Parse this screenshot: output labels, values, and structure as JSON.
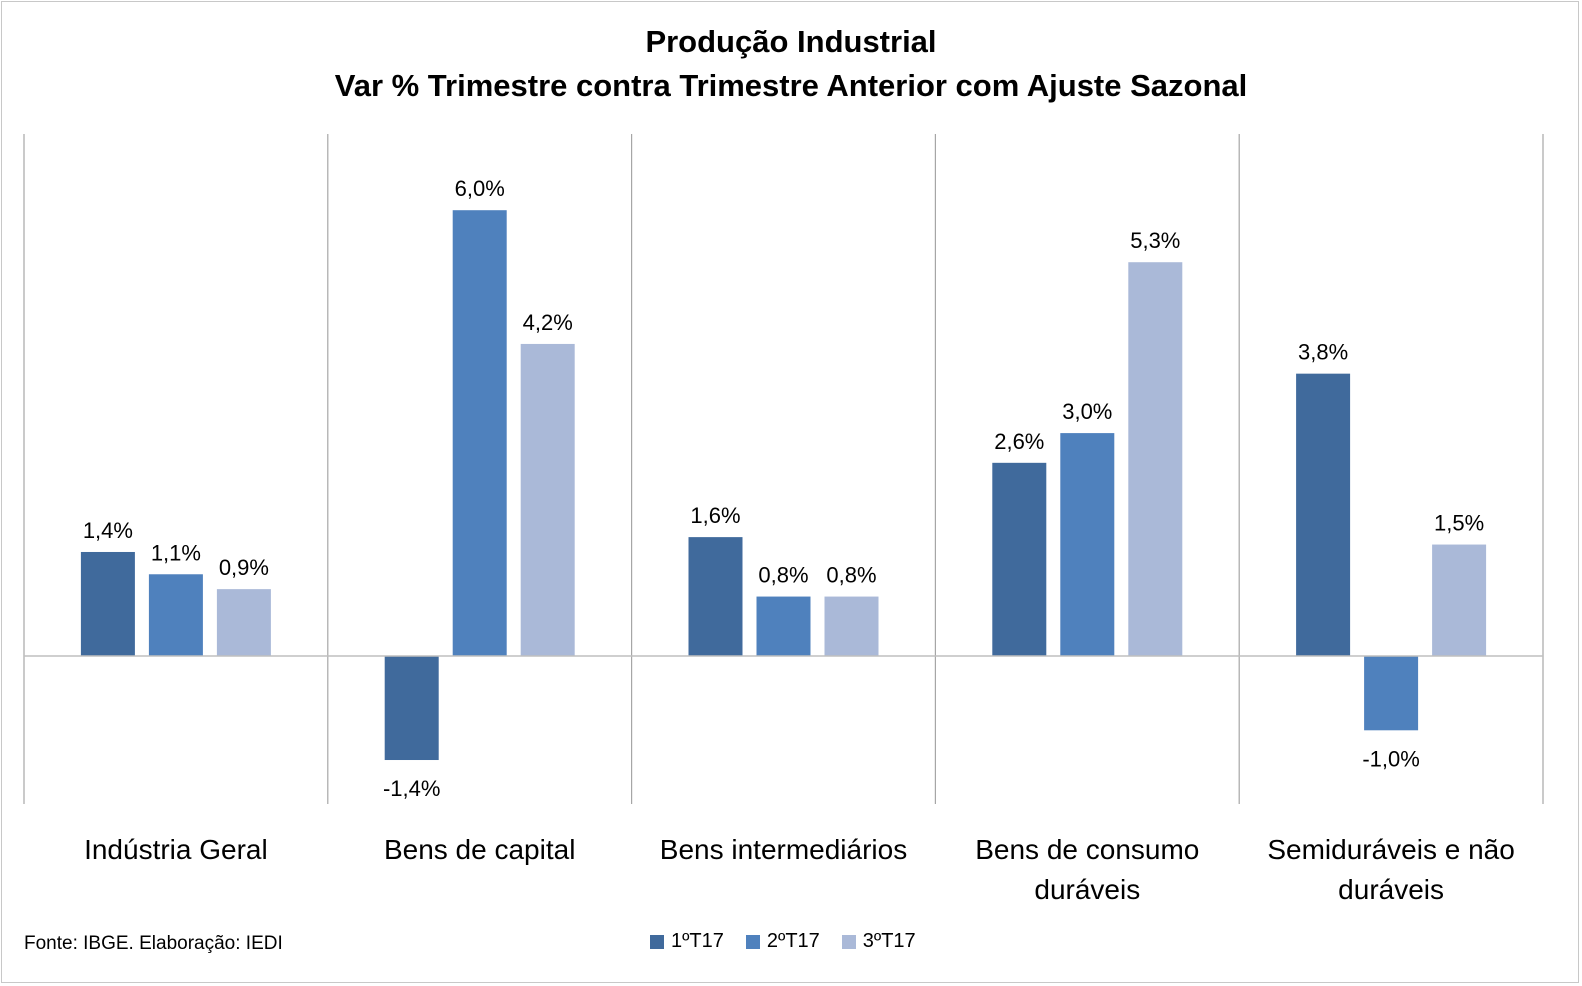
{
  "chart_data": {
    "type": "bar",
    "title": "Produção Industrial",
    "subtitle": "Var % Trimestre contra Trimestre Anterior com Ajuste Sazonal",
    "categories": [
      "Indústria Geral",
      "Bens de capital",
      "Bens intermediários",
      "Bens de consumo duráveis",
      "Semiduráveis e não duráveis"
    ],
    "category_lines": [
      [
        "Indústria Geral"
      ],
      [
        "Bens de capital"
      ],
      [
        "Bens intermediários"
      ],
      [
        "Bens de consumo",
        "duráveis"
      ],
      [
        "Semiduráveis e não",
        "duráveis"
      ]
    ],
    "series": [
      {
        "name": "1ºT17",
        "color": "#406A9C",
        "values": [
          1.4,
          -1.4,
          1.6,
          2.6,
          3.8
        ],
        "labels": [
          "1,4%",
          "-1,4%",
          "1,6%",
          "2,6%",
          "3,8%"
        ]
      },
      {
        "name": "2ºT17",
        "color": "#4F81BD",
        "values": [
          1.1,
          6.0,
          0.8,
          3.0,
          -1.0
        ],
        "labels": [
          "1,1%",
          "6,0%",
          "0,8%",
          "3,0%",
          "-1,0%"
        ]
      },
      {
        "name": "3ºT17",
        "color": "#AAB9D8",
        "values": [
          0.9,
          4.2,
          0.8,
          5.3,
          1.5
        ],
        "labels": [
          "0,9%",
          "4,2%",
          "0,8%",
          "5,3%",
          "1,5%"
        ]
      }
    ],
    "ylim": [
      -2,
      7
    ],
    "grid": false,
    "legend_position": "bottom"
  },
  "source": "Fonte: IBGE. Elaboração: IEDI"
}
